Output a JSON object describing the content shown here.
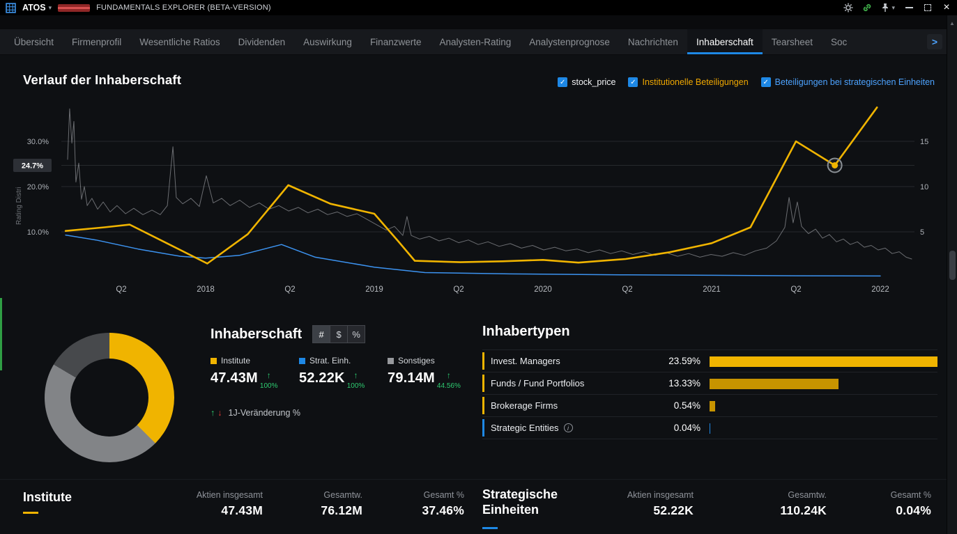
{
  "titlebar": {
    "ticker": "ATOS",
    "subtitle": "FUNDAMENTALS EXPLORER (BETA-VERSION)"
  },
  "icons": {
    "close_glyph": "×",
    "caret_glyph": "▾",
    "check_glyph": "✓",
    "up_glyph": "↑",
    "down_glyph": "↓",
    "chevron_right_glyph": ">",
    "scroll_up_glyph": "▲",
    "info_glyph": "i"
  },
  "colors": {
    "accent_blue": "#1e88e5",
    "accent_yellow": "#f0b400",
    "positive_green": "#2ecc71",
    "negative_red": "#e53935"
  },
  "tabs": {
    "items": [
      "Übersicht",
      "Firmenprofil",
      "Wesentliche Ratios",
      "Dividenden",
      "Auswirkung",
      "Finanzwerte",
      "Analysten-Rating",
      "Analystenprognose",
      "Nachrichten",
      "Inhaberschaft",
      "Tearsheet",
      "Soc"
    ],
    "active_index": 9
  },
  "chart": {
    "title": "Verlauf der Inhaberschaft",
    "legend": [
      {
        "label": "stock_price",
        "color": "#f2f3f5",
        "checked": true
      },
      {
        "label": "Institutionelle Beteiligungen",
        "color": "#f0a800",
        "checked": true
      },
      {
        "label": "Beteiligungen bei strategischen Einheiten",
        "color": "#4da3ff",
        "checked": true
      }
    ],
    "y_left_label": "Rating Distri",
    "badge": "24.7%",
    "left_ticks": [
      {
        "label": "30.0%",
        "value": 30
      },
      {
        "label": "20.0%",
        "value": 20
      },
      {
        "label": "10.0%",
        "value": 10
      }
    ],
    "right_ticks": [
      {
        "label": "15",
        "value": 15
      },
      {
        "label": "10",
        "value": 10
      },
      {
        "label": "5",
        "value": 5
      }
    ],
    "x_ticks": [
      {
        "label": "Q2",
        "year": 2017.5
      },
      {
        "label": "2018",
        "year": 2018
      },
      {
        "label": "Q2",
        "year": 2018.5
      },
      {
        "label": "2019",
        "year": 2019
      },
      {
        "label": "Q2",
        "year": 2019.5
      },
      {
        "label": "2020",
        "year": 2020
      },
      {
        "label": "Q2",
        "year": 2020.5
      },
      {
        "label": "2021",
        "year": 2021
      },
      {
        "label": "Q2",
        "year": 2021.5
      },
      {
        "label": "2022",
        "year": 2022
      }
    ]
  },
  "chart_data": [
    {
      "type": "line",
      "title": "Verlauf der Inhaberschaft",
      "x_range": [
        2017.1,
        2022.25
      ],
      "left_axis": {
        "label": "Rating Distri",
        "unit": "%",
        "range": [
          0,
          40
        ],
        "ticks": [
          10,
          20,
          30
        ]
      },
      "right_axis": {
        "range": [
          0,
          20
        ],
        "ticks": [
          5,
          10,
          15
        ]
      },
      "grid": true,
      "legend_position": "top-right",
      "marker": {
        "series": "Institutionelle Beteiligungen",
        "year": 2021.73,
        "value": 24.7,
        "label": "24.7%"
      },
      "series": [
        {
          "name": "stock_price",
          "axis": "right",
          "color": "#c7cad0",
          "points": [
            [
              2017.182,
              13.0
            ],
            [
              2017.194,
              18.6
            ],
            [
              2017.207,
              14.8
            ],
            [
              2017.219,
              17.2
            ],
            [
              2017.231,
              10.5
            ],
            [
              2017.248,
              12.6
            ],
            [
              2017.264,
              8.6
            ],
            [
              2017.281,
              10.0
            ],
            [
              2017.298,
              7.9
            ],
            [
              2017.326,
              8.7
            ],
            [
              2017.36,
              7.5
            ],
            [
              2017.393,
              8.3
            ],
            [
              2017.434,
              7.2
            ],
            [
              2017.475,
              7.9
            ],
            [
              2017.525,
              7.0
            ],
            [
              2017.574,
              7.6
            ],
            [
              2017.628,
              6.9
            ],
            [
              2017.682,
              7.4
            ],
            [
              2017.731,
              6.9
            ],
            [
              2017.773,
              7.9
            ],
            [
              2017.806,
              14.4
            ],
            [
              2017.826,
              8.8
            ],
            [
              2017.864,
              8.1
            ],
            [
              2017.913,
              8.7
            ],
            [
              2017.963,
              7.8
            ],
            [
              2018.004,
              11.2
            ],
            [
              2018.045,
              8.2
            ],
            [
              2018.095,
              8.7
            ],
            [
              2018.145,
              7.9
            ],
            [
              2018.202,
              8.5
            ],
            [
              2018.26,
              7.7
            ],
            [
              2018.318,
              8.2
            ],
            [
              2018.376,
              7.5
            ],
            [
              2018.434,
              7.9
            ],
            [
              2018.492,
              7.3
            ],
            [
              2018.55,
              7.7
            ],
            [
              2018.607,
              7.1
            ],
            [
              2018.665,
              7.5
            ],
            [
              2018.723,
              6.9
            ],
            [
              2018.781,
              7.2
            ],
            [
              2018.839,
              6.7
            ],
            [
              2018.897,
              7.0
            ],
            [
              2018.955,
              6.4
            ],
            [
              2019.012,
              5.8
            ],
            [
              2019.07,
              5.2
            ],
            [
              2019.12,
              5.6
            ],
            [
              2019.169,
              4.6
            ],
            [
              2019.194,
              6.7
            ],
            [
              2019.219,
              4.6
            ],
            [
              2019.269,
              4.2
            ],
            [
              2019.326,
              4.5
            ],
            [
              2019.384,
              4.0
            ],
            [
              2019.442,
              4.3
            ],
            [
              2019.5,
              3.8
            ],
            [
              2019.558,
              4.1
            ],
            [
              2019.616,
              3.6
            ],
            [
              2019.674,
              3.9
            ],
            [
              2019.74,
              3.4
            ],
            [
              2019.806,
              3.7
            ],
            [
              2019.872,
              3.2
            ],
            [
              2019.938,
              3.5
            ],
            [
              2020.004,
              3.0
            ],
            [
              2020.07,
              3.3
            ],
            [
              2020.136,
              2.9
            ],
            [
              2020.202,
              3.1
            ],
            [
              2020.269,
              2.7
            ],
            [
              2020.335,
              3.0
            ],
            [
              2020.401,
              2.6
            ],
            [
              2020.467,
              2.9
            ],
            [
              2020.533,
              2.5
            ],
            [
              2020.599,
              2.8
            ],
            [
              2020.665,
              2.4
            ],
            [
              2020.731,
              2.7
            ],
            [
              2020.798,
              2.3
            ],
            [
              2020.864,
              2.6
            ],
            [
              2020.93,
              2.2
            ],
            [
              2020.996,
              2.5
            ],
            [
              2021.062,
              2.3
            ],
            [
              2021.128,
              2.7
            ],
            [
              2021.194,
              2.4
            ],
            [
              2021.26,
              2.9
            ],
            [
              2021.326,
              3.2
            ],
            [
              2021.384,
              4.0
            ],
            [
              2021.434,
              5.5
            ],
            [
              2021.459,
              8.8
            ],
            [
              2021.483,
              6.0
            ],
            [
              2021.508,
              8.3
            ],
            [
              2021.533,
              5.6
            ],
            [
              2021.574,
              4.8
            ],
            [
              2021.616,
              5.3
            ],
            [
              2021.657,
              4.3
            ],
            [
              2021.698,
              4.7
            ],
            [
              2021.74,
              3.9
            ],
            [
              2021.781,
              4.2
            ],
            [
              2021.822,
              3.6
            ],
            [
              2021.864,
              3.9
            ],
            [
              2021.905,
              3.3
            ],
            [
              2021.946,
              3.5
            ],
            [
              2021.987,
              3.0
            ],
            [
              2022.029,
              3.2
            ],
            [
              2022.07,
              2.6
            ],
            [
              2022.112,
              2.8
            ],
            [
              2022.153,
              2.2
            ],
            [
              2022.186,
              2.0
            ]
          ]
        },
        {
          "name": "Beteiligungen bei strategischen Einheiten",
          "axis": "left",
          "color": "#3f9bfd",
          "points": [
            [
              2017.17,
              9.3
            ],
            [
              2017.35,
              8.2
            ],
            [
              2017.6,
              6.2
            ],
            [
              2017.85,
              4.6
            ],
            [
              2018.0,
              4.2
            ],
            [
              2018.2,
              4.8
            ],
            [
              2018.45,
              7.2
            ],
            [
              2018.65,
              4.4
            ],
            [
              2019.0,
              2.2
            ],
            [
              2019.3,
              1.0
            ],
            [
              2019.8,
              0.7
            ],
            [
              2020.5,
              0.5
            ],
            [
              2021.0,
              0.4
            ],
            [
              2021.5,
              0.3
            ],
            [
              2022.0,
              0.25
            ]
          ]
        },
        {
          "name": "Institutionelle Beteiligungen",
          "axis": "left",
          "color": "#f0b400",
          "points": [
            [
              2017.17,
              10.2
            ],
            [
              2017.4,
              11.0
            ],
            [
              2017.55,
              11.6
            ],
            [
              2017.77,
              7.5
            ],
            [
              2018.01,
              3.0
            ],
            [
              2018.25,
              9.5
            ],
            [
              2018.49,
              20.3
            ],
            [
              2018.74,
              16.2
            ],
            [
              2019.0,
              14.0
            ],
            [
              2019.14,
              8.0
            ],
            [
              2019.24,
              3.6
            ],
            [
              2019.51,
              3.3
            ],
            [
              2019.76,
              3.5
            ],
            [
              2020.0,
              3.8
            ],
            [
              2020.21,
              3.2
            ],
            [
              2020.49,
              4.0
            ],
            [
              2020.75,
              5.5
            ],
            [
              2021.0,
              7.5
            ],
            [
              2021.23,
              11.0
            ],
            [
              2021.5,
              30.0
            ],
            [
              2021.73,
              24.7
            ],
            [
              2021.98,
              37.5
            ]
          ]
        }
      ]
    },
    {
      "type": "pie",
      "name": "ownership-donut",
      "segments": [
        {
          "label": "Institute",
          "pct": 37.46,
          "color": "#f0b400"
        },
        {
          "label": "Sonstiges",
          "pct": 46.04,
          "color": "#828487"
        },
        {
          "label": "Sonstiges (shaded)",
          "pct": 16.5,
          "color": "#47494c"
        }
      ]
    },
    {
      "type": "bar",
      "title": "Inhabertypen",
      "max_value": 23.59,
      "rows": [
        {
          "label": "Invest. Managers",
          "value": 23.59,
          "display": "23.59%",
          "accent": "#f0b400",
          "bar_color": "#f0b400",
          "info": false
        },
        {
          "label": "Funds / Fund Portfolios",
          "value": 13.33,
          "display": "13.33%",
          "accent": "#f0b400",
          "bar_color": "#c79400",
          "info": false
        },
        {
          "label": "Brokerage Firms",
          "value": 0.54,
          "display": "0.54%",
          "accent": "#f0b400",
          "bar_color": "#c79400",
          "info": false
        },
        {
          "label": "Strategic Entities",
          "value": 0.04,
          "display": "0.04%",
          "accent": "#1e88e5",
          "bar_color": "#1e88e5",
          "info": true
        }
      ]
    }
  ],
  "ownership_panel": {
    "title": "Inhaberschaft",
    "units": [
      "#",
      "$",
      "%"
    ],
    "active_unit": "#",
    "holders": [
      {
        "label": "Institute",
        "color": "#f0b400",
        "value": "47.43M",
        "change": "100%",
        "direction": "up"
      },
      {
        "label": "Strat. Einh.",
        "color": "#1e88e5",
        "value": "52.22K",
        "change": "100%",
        "direction": "up"
      },
      {
        "label": "Sonstiges",
        "color": "#97999d",
        "value": "79.14M",
        "change": "44.56%",
        "direction": "up"
      }
    ],
    "footnote": "1J-Veränderung %"
  },
  "bottom": {
    "groups": [
      {
        "title": "Institute",
        "accent": "#f0b400",
        "stats": [
          {
            "label": "Aktien insgesamt",
            "value": "47.43M"
          },
          {
            "label": "Gesamtw.",
            "value": "76.12M"
          },
          {
            "label": "Gesamt %",
            "value": "37.46%"
          }
        ]
      },
      {
        "title": "Strategische Einheiten",
        "accent": "#1e88e5",
        "stats": [
          {
            "label": "Aktien insgesamt",
            "value": "52.22K"
          },
          {
            "label": "Gesamtw.",
            "value": "110.24K"
          },
          {
            "label": "Gesamt %",
            "value": "0.04%"
          }
        ]
      }
    ]
  }
}
